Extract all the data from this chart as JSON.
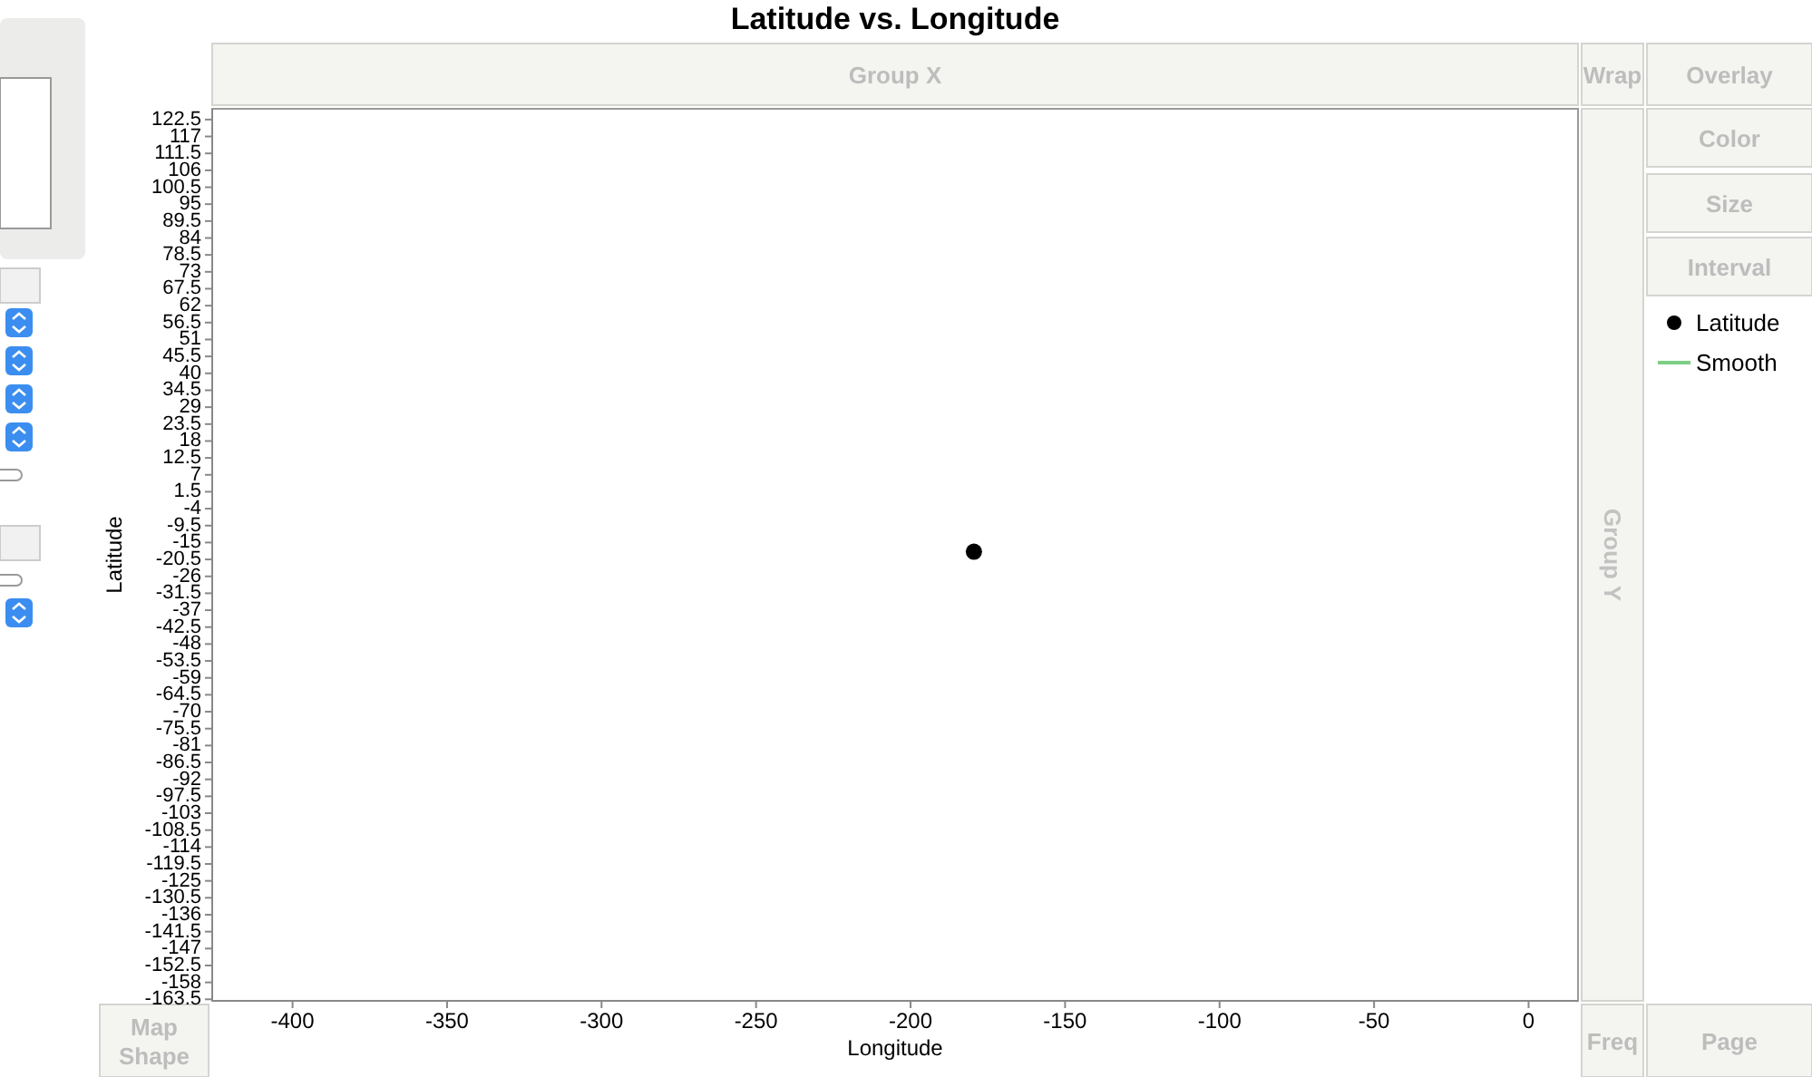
{
  "chart_data": {
    "type": "scatter",
    "title": "Latitude vs. Longitude",
    "xlabel": "Longitude",
    "ylabel": "Latitude",
    "xlim": [
      -426,
      16
    ],
    "xticks": [
      -400,
      -350,
      -300,
      -250,
      -200,
      -150,
      -100,
      -50,
      0
    ],
    "ylim": [
      -164,
      126
    ],
    "yticks": [
      122.5,
      117,
      111.5,
      106,
      100.5,
      95,
      89.5,
      84,
      78.5,
      73,
      67.5,
      62,
      56.5,
      51,
      45.5,
      40,
      34.5,
      29,
      23.5,
      18,
      12.5,
      7,
      1.5,
      -4,
      -9.5,
      -15,
      -20.5,
      -26,
      -31.5,
      -37,
      -42.5,
      -48,
      -53.5,
      -59,
      -64.5,
      -70,
      -75.5,
      -81,
      -86.5,
      -92,
      -97.5,
      -103,
      -108.5,
      -114,
      -119.5,
      -125,
      -130.5,
      -136,
      -141.5,
      -147,
      -152.5,
      -158,
      -163.5
    ],
    "marker": "circle",
    "legend": "right",
    "grid": false,
    "series": [
      {
        "name": "Latitude",
        "color": "#000000",
        "x": [
          -179.5
        ],
        "values": [
          -18
        ]
      },
      {
        "name": "Smooth",
        "type": "line",
        "color": "#7ccf85"
      }
    ],
    "annotations": [
      "Group X",
      "Wrap",
      "Overlay",
      "Color",
      "Size",
      "Interval",
      "Group Y",
      "Map Shape",
      "Freq",
      "Page"
    ]
  }
}
